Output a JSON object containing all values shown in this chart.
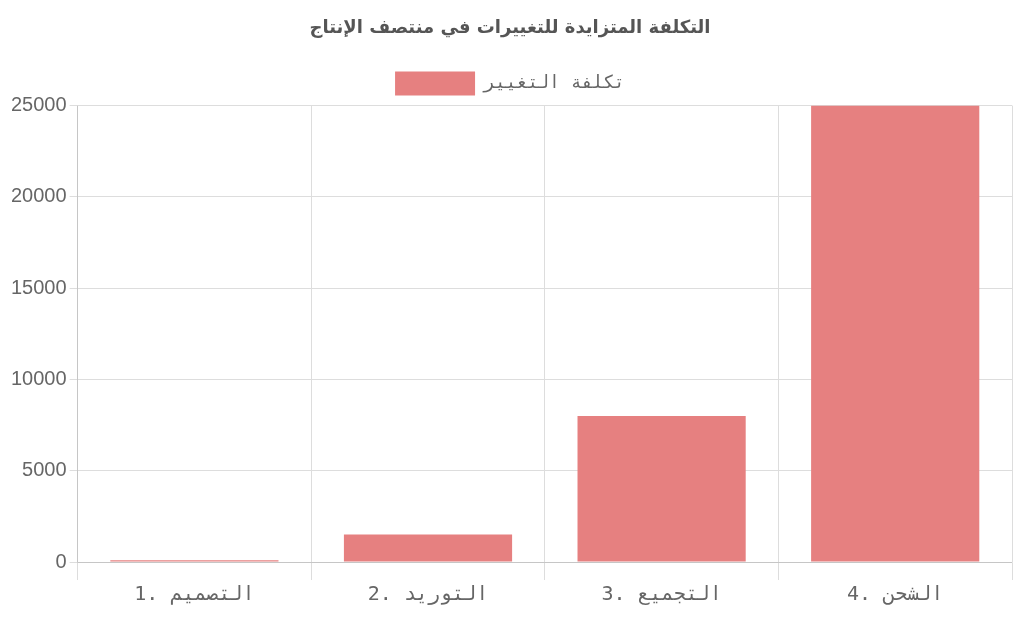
{
  "chart_data": {
    "type": "bar",
    "title": "التكلفة المتزايدة للتغييرات في منتصف الإنتاج",
    "categories": [
      "1. التصميم",
      "2. التوريد",
      "3. التجميع",
      "4. الشحن"
    ],
    "series": [
      {
        "name": "تكلفة التغيير",
        "color": "#e68080",
        "values": [
          100,
          1500,
          8000,
          25000
        ]
      }
    ],
    "ylim": [
      0,
      25000
    ],
    "yticks": [
      0,
      5000,
      10000,
      15000,
      20000,
      25000
    ],
    "grid": true,
    "legend": "top"
  }
}
